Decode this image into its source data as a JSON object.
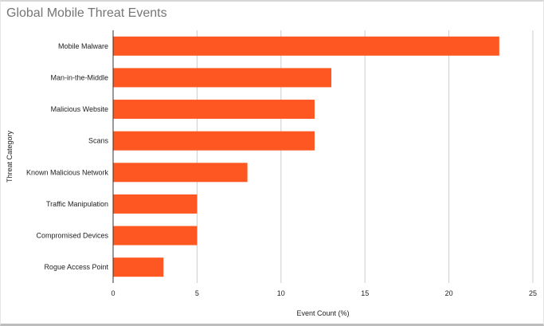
{
  "chart_data": {
    "type": "bar",
    "orientation": "horizontal",
    "title": "Global Mobile Threat Events",
    "xlabel": "Event Count (%)",
    "ylabel": "Threat Category",
    "categories": [
      "Mobile Malware",
      "Man-in-the-Middle",
      "Malicious Website",
      "Scans",
      "Known Malicious Network",
      "Traffic Manipulation",
      "Compromised Devices",
      "Rogue Access Point"
    ],
    "values": [
      23,
      13,
      12,
      12,
      8,
      5,
      5,
      3
    ],
    "xlim": [
      0,
      25
    ],
    "xticks": [
      0,
      5,
      10,
      15,
      20,
      25
    ],
    "grid": true,
    "legend": "none",
    "bar_color": "#ff5722",
    "grid_color": "#cccccc"
  }
}
